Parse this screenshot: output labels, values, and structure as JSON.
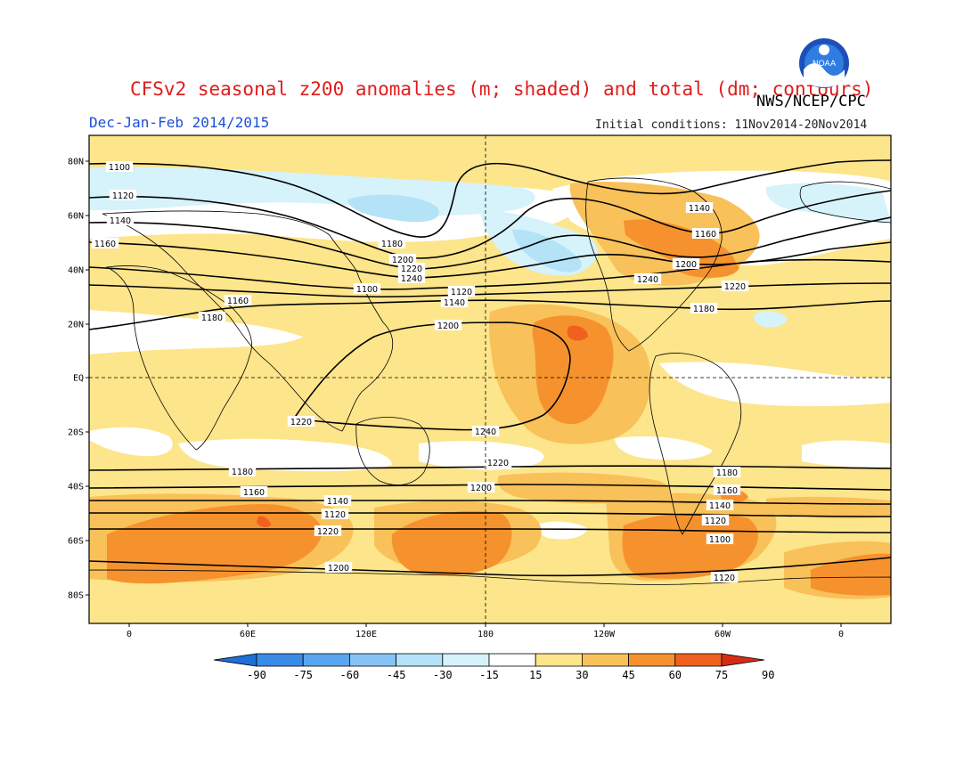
{
  "header": {
    "title": "CFSv2 seasonal z200 anomalies (m; shaded) and total (dm; contours)",
    "agency": "NWS/NCEP/CPC",
    "season": "Dec-Jan-Feb 2014/2015",
    "initial_conditions": "Initial conditions: 11Nov2014-20Nov2014",
    "logo_text": "NOAA"
  },
  "map": {
    "projection": "cylindrical equidistant",
    "lon_range": [
      -20,
      380
    ],
    "lat_range": [
      -90,
      90
    ],
    "lon_ticks": [
      "0",
      "60E",
      "120E",
      "180",
      "120W",
      "60W",
      "0"
    ],
    "lat_ticks": [
      "80N",
      "60N",
      "40N",
      "20N",
      "EQ",
      "20S",
      "40S",
      "60S",
      "80S"
    ],
    "colors": {
      "n90": "#1e6fd6",
      "n75": "#3a8be6",
      "n60": "#5aa5f0",
      "n45": "#86c3f4",
      "n30": "#b4e2f7",
      "n15": "#d6f2fb",
      "p15": "#ffffff",
      "p30": "#fde58b",
      "p45": "#f9c15a",
      "p60": "#f5922e",
      "p75": "#f0611f",
      "p90": "#d42d14",
      "land": "#000000",
      "contour": "#000000"
    },
    "anomaly_regions": [
      {
        "level": "p30",
        "desc": "tropics and southern hemisphere"
      },
      {
        "level": "p45",
        "desc": "central pacific"
      },
      {
        "level": "p60",
        "desc": "east-central tropical pacific"
      },
      {
        "level": "p75",
        "desc": "tropical pacific core"
      },
      {
        "level": "n30",
        "desc": "north atlantic to siberia"
      },
      {
        "level": "n45",
        "desc": "north pacific"
      },
      {
        "level": "p60",
        "desc": "eastern north america"
      },
      {
        "level": "p60",
        "desc": "southern ocean"
      }
    ],
    "contour_labels": [
      "1100",
      "1120",
      "1140",
      "1160",
      "1180",
      "1200",
      "1220",
      "1240",
      "1100",
      "1120",
      "1140",
      "1160",
      "1180",
      "1200",
      "1220",
      "1240",
      "1220",
      "1200",
      "1180",
      "1160",
      "1140",
      "1120",
      "1220",
      "1200",
      "1180",
      "1160",
      "1140",
      "1120",
      "1100",
      "1120",
      "1140",
      "1160",
      "1200",
      "1220",
      "1180",
      "1240"
    ]
  },
  "colorbar": {
    "labels": [
      "-90",
      "-75",
      "-60",
      "-45",
      "-30",
      "-15",
      "15",
      "30",
      "45",
      "60",
      "75",
      "90"
    ],
    "colors": [
      "#1e6fd6",
      "#3a8be6",
      "#5aa5f0",
      "#86c3f4",
      "#b4e2f7",
      "#d6f2fb",
      "#ffffff",
      "#fde58b",
      "#f9c15a",
      "#f5922e",
      "#f0611f",
      "#d42d14"
    ]
  }
}
